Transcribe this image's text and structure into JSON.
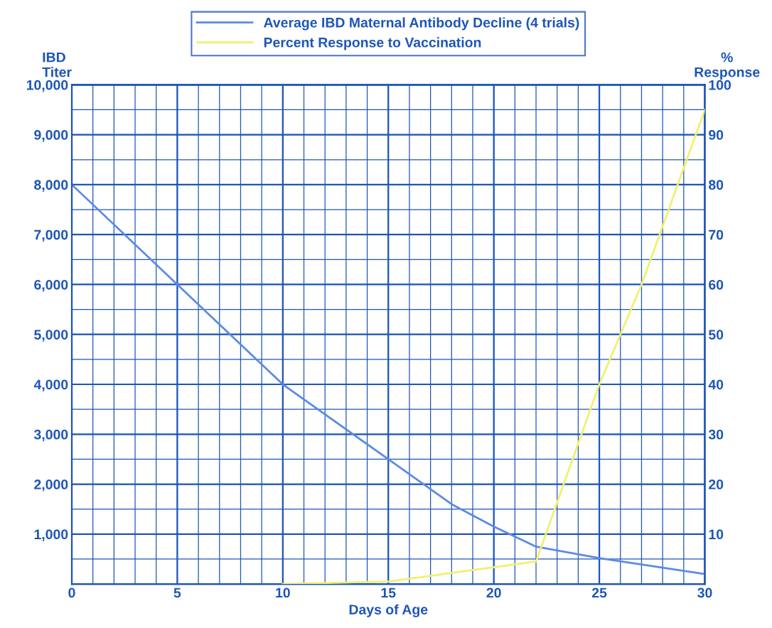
{
  "chart_data": {
    "type": "line",
    "xlabel": "Days of Age",
    "ylabel": "IBD\nTiter",
    "y2label": "%\nResponse",
    "xlim": [
      0,
      30
    ],
    "ylim": [
      0,
      10000
    ],
    "y2lim": [
      0,
      100
    ],
    "xticks": [
      0,
      {
        "value": 1,
        "label": null
      },
      {
        "value": 2,
        "label": null
      },
      {
        "value": 3,
        "label": null
      },
      {
        "value": 4,
        "label": null
      },
      5,
      {
        "value": 6,
        "label": null
      },
      {
        "value": 7,
        "label": null
      },
      {
        "value": 8,
        "label": null
      },
      {
        "value": 9,
        "label": null
      },
      10,
      {
        "value": 11,
        "label": null
      },
      {
        "value": 12,
        "label": null
      },
      {
        "value": 13,
        "label": null
      },
      {
        "value": 14,
        "label": null
      },
      15,
      {
        "value": 16,
        "label": null
      },
      {
        "value": 17,
        "label": null
      },
      {
        "value": 18,
        "label": null
      },
      {
        "value": 19,
        "label": null
      },
      20,
      {
        "value": 21,
        "label": null
      },
      {
        "value": 22,
        "label": null
      },
      {
        "value": 23,
        "label": null
      },
      {
        "value": 24,
        "label": null
      },
      25,
      {
        "value": 26,
        "label": null
      },
      {
        "value": 27,
        "label": null
      },
      {
        "value": 28,
        "label": null
      },
      {
        "value": 29,
        "label": null
      },
      30
    ],
    "yticks": [
      {
        "value": 0,
        "label": null
      },
      {
        "value": 500,
        "label": null
      },
      {
        "value": 1000,
        "label": "1,000"
      },
      {
        "value": 1500,
        "label": null
      },
      {
        "value": 2000,
        "label": "2,000"
      },
      {
        "value": 2500,
        "label": null
      },
      {
        "value": 3000,
        "label": "3,000"
      },
      {
        "value": 3500,
        "label": null
      },
      {
        "value": 4000,
        "label": "4,000"
      },
      {
        "value": 4500,
        "label": null
      },
      {
        "value": 5000,
        "label": "5,000"
      },
      {
        "value": 5500,
        "label": null
      },
      {
        "value": 6000,
        "label": "6,000"
      },
      {
        "value": 6500,
        "label": null
      },
      {
        "value": 7000,
        "label": "7,000"
      },
      {
        "value": 7500,
        "label": null
      },
      {
        "value": 8000,
        "label": "8,000"
      },
      {
        "value": 8500,
        "label": null
      },
      {
        "value": 9000,
        "label": "9,000"
      },
      {
        "value": 9500,
        "label": null
      },
      {
        "value": 10000,
        "label": "10,000"
      }
    ],
    "y2ticks": [
      10,
      20,
      30,
      40,
      50,
      60,
      70,
      80,
      90,
      100
    ],
    "grid": true,
    "legend": "top",
    "marker": "none",
    "line_style": "solid",
    "series": [
      {
        "name": "Average IBD Maternal Antibody Decline (4 trials)",
        "color": "#5b8ae6",
        "x": [
          0,
          5,
          10,
          15,
          18,
          20,
          22,
          25,
          30
        ],
        "values": [
          8000,
          6000,
          4000,
          2500,
          1600,
          1150,
          750,
          520,
          200
        ]
      },
      {
        "name": "Percent Response to Vaccination",
        "color": "#f0f070",
        "axis": "y2",
        "x": [
          10,
          15,
          22,
          25,
          27,
          30
        ],
        "values": [
          0,
          0.5,
          4.5,
          40,
          60,
          95
        ]
      }
    ]
  }
}
